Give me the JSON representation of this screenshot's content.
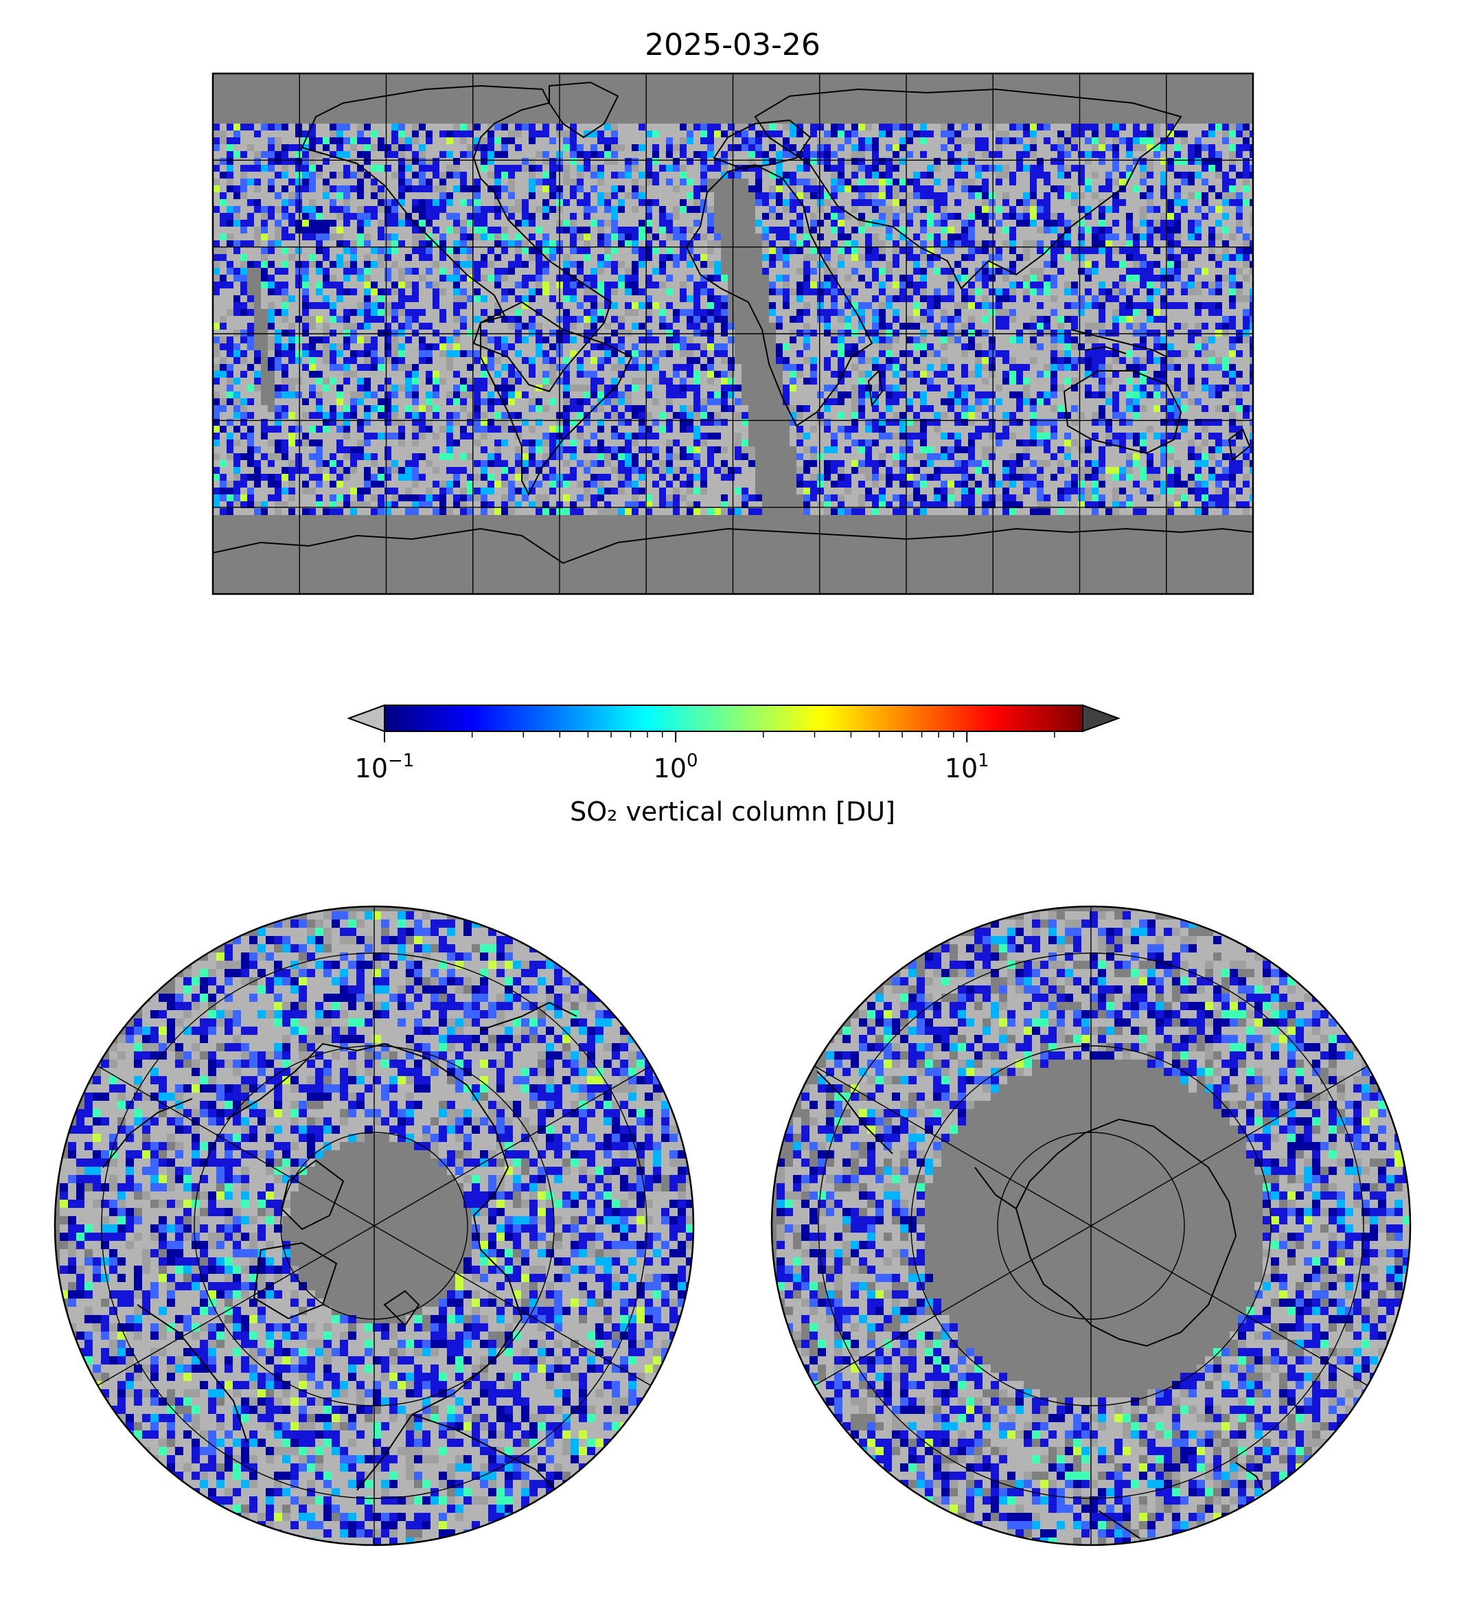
{
  "figure": {
    "title": "2025-03-26"
  },
  "colorbar": {
    "label": "SO₂ vertical column [DU]",
    "scale": "log",
    "range": [
      0.1,
      25
    ],
    "ticks": [
      {
        "base": "10",
        "exp": "−1",
        "value": 0.1
      },
      {
        "base": "10",
        "exp": "0",
        "value": 1
      },
      {
        "base": "10",
        "exp": "1",
        "value": 10
      }
    ],
    "colormap": "jet",
    "colors": [
      "#00007f",
      "#0000ff",
      "#007fff",
      "#00ffff",
      "#7fff7f",
      "#ffff00",
      "#ff7f00",
      "#ff0000",
      "#7f0000"
    ],
    "under_color": "#c0c0c0",
    "over_color": "#404040"
  },
  "maps": {
    "global": {
      "projection": "plate-carree",
      "missing_color": "#808080",
      "background_color": "#b4b4b4"
    },
    "north_pole": {
      "projection": "north-polar-stereographic",
      "missing_color": "#808080"
    },
    "south_pole": {
      "projection": "south-polar-stereographic",
      "missing_color": "#808080"
    }
  }
}
